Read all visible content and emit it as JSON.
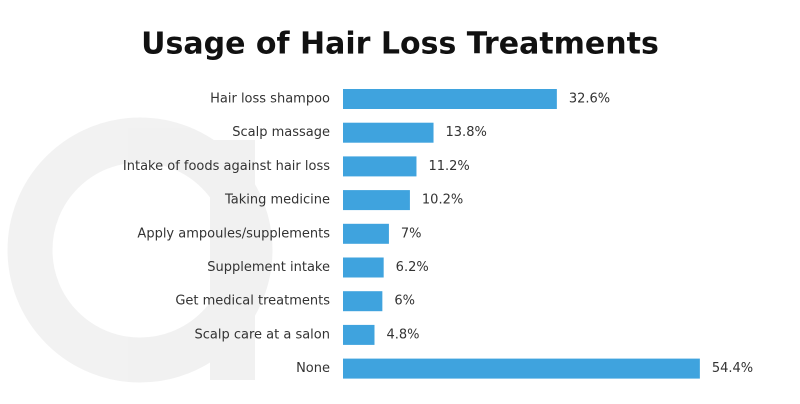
{
  "chart_data": {
    "type": "bar",
    "orientation": "horizontal",
    "title": "Usage of Hair Loss Treatments",
    "categories": [
      "Hair loss shampoo",
      "Scalp massage",
      "Intake of foods against hair loss",
      "Taking medicine",
      "Apply ampoules/supplements",
      "Supplement intake",
      "Get medical treatments",
      "Scalp care at a salon",
      "None"
    ],
    "values": [
      32.6,
      13.8,
      11.2,
      10.2,
      7,
      6.2,
      6,
      4.8,
      54.4
    ],
    "value_labels": [
      "32.6%",
      "13.8%",
      "11.2%",
      "10.2%",
      "7%",
      "6.2%",
      "6%",
      "4.8%",
      "54.4%"
    ],
    "color": "#3fa3de"
  }
}
